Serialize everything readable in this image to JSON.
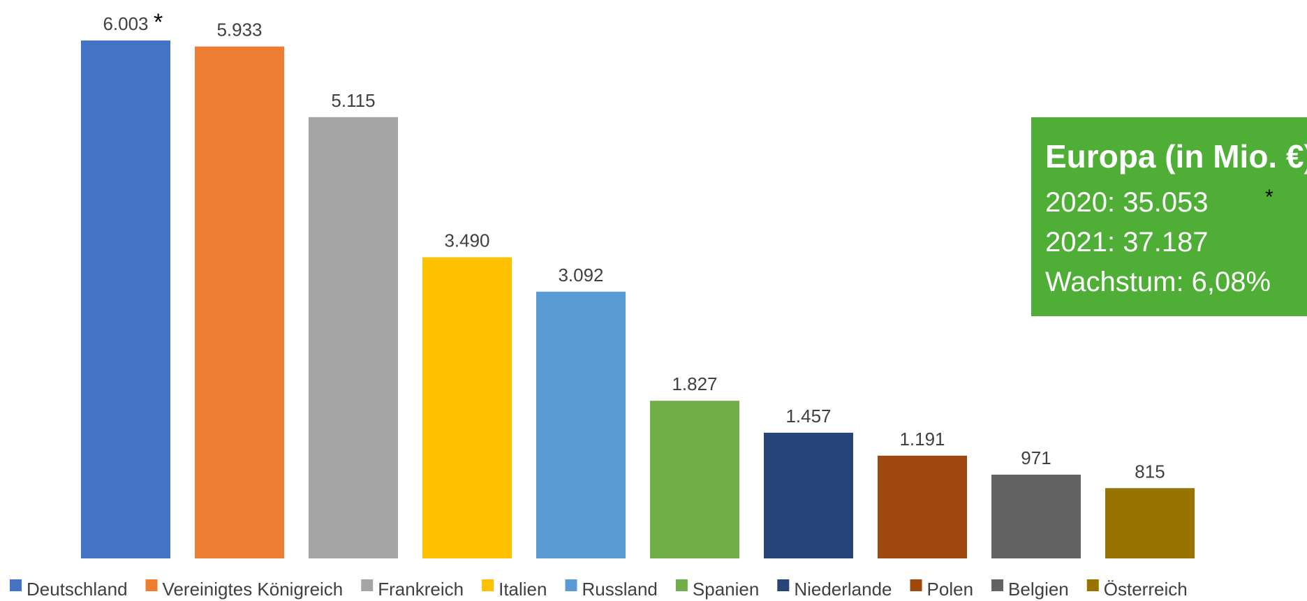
{
  "chart_data": {
    "type": "bar",
    "title": "",
    "xlabel": "",
    "ylabel": "",
    "ylim": [
      0,
      6003
    ],
    "grid": false,
    "legend_position": "bottom",
    "categories": [
      "Deutschland",
      "Vereinigtes Königreich",
      "Frankreich",
      "Italien",
      "Russland",
      "Spanien",
      "Niederlande",
      "Polen",
      "Belgien",
      "Österreich"
    ],
    "values": [
      6003,
      5933,
      5115,
      3490,
      3092,
      1827,
      1457,
      1191,
      971,
      815
    ],
    "value_labels": [
      "6.003",
      "5.933",
      "5.115",
      "3.490",
      "3.092",
      "1.827",
      "1.457",
      "1.191",
      "971",
      "815"
    ],
    "colors": [
      "#4472C4",
      "#ED7D31",
      "#A5A5A5",
      "#FFC000",
      "#5B9BD5",
      "#70AD47",
      "#264478",
      "#9E480E",
      "#636363",
      "#997300"
    ],
    "annotations": [
      "*"
    ]
  },
  "info_box": {
    "title": "Europa (in Mio. €)",
    "lines": [
      "2020: 35.053",
      "2021: 37.187",
      "Wachstum: 6,08%"
    ],
    "marker": "*",
    "background": "#4EAE36"
  }
}
